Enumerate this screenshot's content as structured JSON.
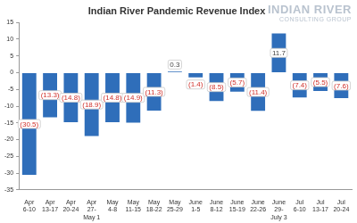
{
  "chart_data": {
    "type": "bar",
    "title": "Indian River Pandemic Revenue Index",
    "annotations": [
      "INDIAN RIVER",
      "CONSULTING GROUP"
    ],
    "categories": [
      [
        "Apr",
        "6-10"
      ],
      [
        "Apr",
        "13-17"
      ],
      [
        "Apr",
        "20-24"
      ],
      [
        "Apr",
        "27-",
        "May 1"
      ],
      [
        "May",
        "4-8"
      ],
      [
        "May",
        "11-15"
      ],
      [
        "May",
        "18-22"
      ],
      [
        "May",
        "25-29"
      ],
      [
        "June",
        "1-5"
      ],
      [
        "June",
        "8-12"
      ],
      [
        "June",
        "15-19"
      ],
      [
        "June",
        "22-26"
      ],
      [
        "June",
        "29-",
        "July 3"
      ],
      [
        "Jul",
        "6-10"
      ],
      [
        "Jul",
        "13-17"
      ],
      [
        "Jul",
        "20-24"
      ]
    ],
    "values": [
      -30.5,
      -13.3,
      -14.8,
      -18.9,
      -14.8,
      -14.9,
      -11.3,
      0.3,
      -1.4,
      -8.5,
      -5.7,
      -11.4,
      11.7,
      -7.4,
      -5.5,
      -7.6
    ],
    "value_labels": [
      "(30.5)",
      "(13.3)",
      "(14.8)",
      "(18.9)",
      "(14.8)",
      "(14.9)",
      "(11.3)",
      "0.3",
      "(1.4)",
      "(8.5)",
      "(5.7)",
      "(11.4)",
      "11.7",
      "(7.4)",
      "(5.5)",
      "(7.6)"
    ],
    "data_labels": true,
    "color": "#2f6eba",
    "ylim": [
      -35,
      15
    ],
    "yticks": [
      -35,
      -30,
      -25,
      -20,
      -15,
      -10,
      -5,
      0,
      5,
      10,
      15
    ],
    "grid": false
  }
}
